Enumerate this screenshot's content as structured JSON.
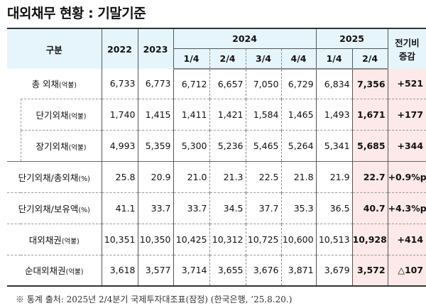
{
  "title": "대외채무 현황 : 기말기준",
  "header": {
    "category": "구분",
    "y2022": "2022",
    "y2023": "2023",
    "y2024": "2024",
    "y2025": "2025",
    "change": "전기비\n증감",
    "change_l1": "전기비",
    "change_l2": "증감",
    "quarters": [
      "1/4",
      "2/4",
      "3/4",
      "4/4",
      "1/4",
      "2/4"
    ]
  },
  "rows": [
    {
      "label": "총 외채",
      "unit": "(억불)",
      "values": [
        "6,733",
        "6,773",
        "6,712",
        "6,657",
        "7,050",
        "6,729",
        "6,834",
        "7,356"
      ],
      "change": "+521"
    },
    {
      "label": "단기외채",
      "unit": "(억불)",
      "values": [
        "1,740",
        "1,415",
        "1,411",
        "1,421",
        "1,584",
        "1,465",
        "1,493",
        "1,671"
      ],
      "change": "+177"
    },
    {
      "label": "장기외채",
      "unit": "(억불)",
      "values": [
        "4,993",
        "5,359",
        "5,300",
        "5,236",
        "5,465",
        "5,264",
        "5,341",
        "5,685"
      ],
      "change": "+344"
    },
    {
      "label": "단기외채/총외채",
      "unit": "(%)",
      "values": [
        "25.8",
        "20.9",
        "21.0",
        "21.3",
        "22.5",
        "21.8",
        "21.9",
        "22.7"
      ],
      "change": "+0.9%p"
    },
    {
      "label": "단기외채/보유액",
      "unit": "(%)",
      "values": [
        "41.1",
        "33.7",
        "33.7",
        "34.5",
        "37.7",
        "35.3",
        "36.5",
        "40.7"
      ],
      "change": "+4.3%p"
    },
    {
      "label": "대외채권",
      "unit": "(억불)",
      "values": [
        "10,351",
        "10,350",
        "10,425",
        "10,312",
        "10,725",
        "10,600",
        "10,513",
        "10,928"
      ],
      "change": "+414"
    },
    {
      "label": "순대외채권",
      "unit": "(억불)",
      "values": [
        "3,618",
        "3,577",
        "3,714",
        "3,655",
        "3,676",
        "3,871",
        "3,679",
        "3,572"
      ],
      "change": "△107"
    }
  ],
  "footnote": "※ 통계 출처: 2025년 2/4분기 국제투자대조표(잠정) (한국은행, ’25.8.20.)",
  "colors": {
    "header_bg": "#e6f5fb",
    "highlight_bg": "#fde9ea"
  }
}
